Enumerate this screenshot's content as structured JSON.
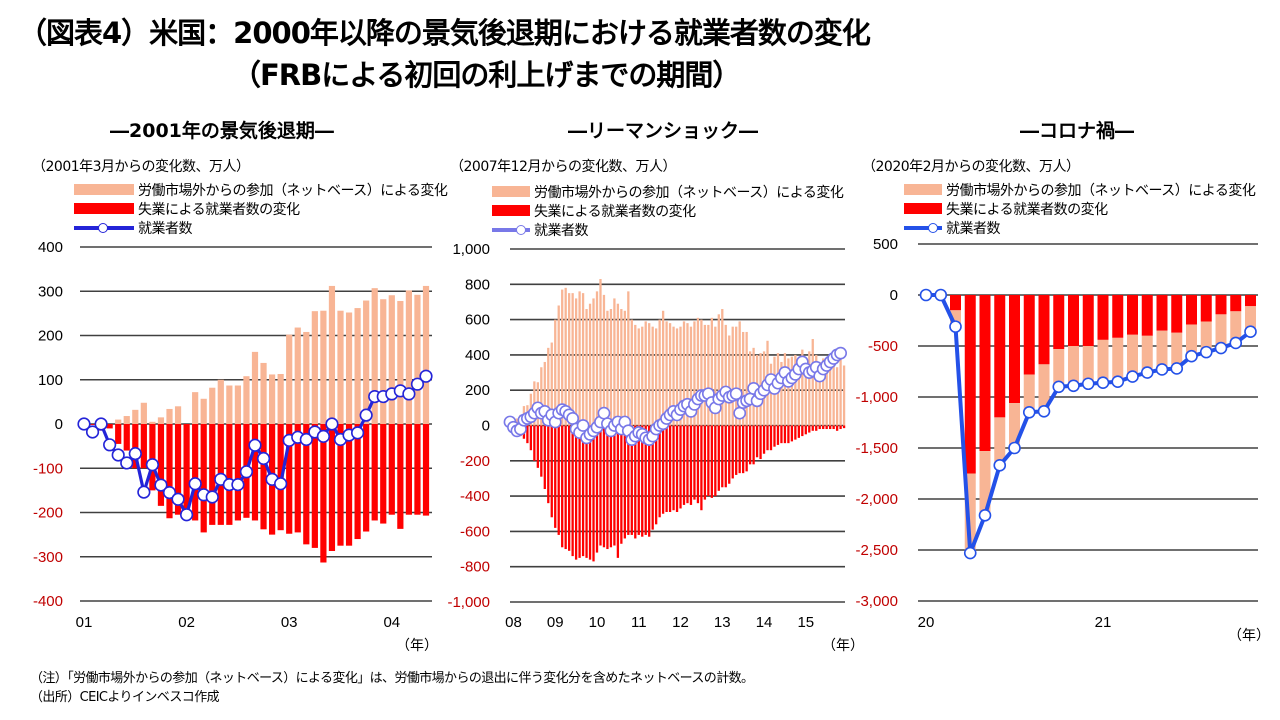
{
  "title_line1": "（図表4）米国：2000年以降の景気後退期における就業者数の変化",
  "title_line2": "（FRBによる初回の利上げまでの期間）",
  "colors": {
    "participation": "#f8b595",
    "unemployment": "#ff0000",
    "employed_line_1": "#2424d8",
    "employed_line_2": "#7878e8",
    "employed_line_3": "#2451e8",
    "neg_tick": "#c00000",
    "grid": "#404040"
  },
  "notes": {
    "note": "（注）「労働市場外からの参加（ネットベース）による変化」は、労働市場からの退出に伴う変化分を含めたネットベースの計数。",
    "source": "（出所）CEICよりインベスコ作成"
  },
  "chart_data": [
    {
      "type": "bar",
      "title": "―2001年の景気後退期―",
      "unit_label": "（2001年3月からの変化数、万人）",
      "xlabel": "（年）",
      "legend": [
        "労働市場外からの参加（ネットベース）による変化",
        "失業による就業者数の変化",
        "就業者数"
      ],
      "ylim": [
        -400,
        400
      ],
      "yticks": [
        400,
        300,
        200,
        100,
        0,
        -100,
        -200,
        -300,
        -400
      ],
      "ytick_labels": [
        "400",
        "300",
        "200",
        "100",
        "0",
        "-100",
        "-200",
        "-300",
        "-400"
      ],
      "xtick_labels": [
        "01",
        "02",
        "03",
        "04"
      ],
      "xtick_index": [
        0,
        12,
        24,
        36
      ],
      "grid": true,
      "series": [
        {
          "name": "労働市場外からの参加（ネットベース）による変化",
          "kind": "bar",
          "values": [
            0,
            0,
            -5,
            0,
            10,
            18,
            32,
            48,
            5,
            15,
            34,
            40,
            0,
            72,
            57,
            82,
            100,
            87,
            87,
            108,
            163,
            138,
            112,
            113,
            202,
            218,
            208,
            255,
            256,
            312,
            256,
            252,
            262,
            279,
            307,
            282,
            291,
            278,
            302,
            292,
            312
          ]
        },
        {
          "name": "失業による就業者数の変化",
          "kind": "bar",
          "values": [
            0,
            -2,
            -15,
            -10,
            -45,
            -60,
            -100,
            -100,
            -150,
            -185,
            -213,
            -205,
            -203,
            -218,
            -245,
            -228,
            -228,
            -228,
            -218,
            -212,
            -218,
            -238,
            -250,
            -240,
            -248,
            -245,
            -272,
            -280,
            -313,
            -287,
            -275,
            -275,
            -260,
            -243,
            -218,
            -225,
            -205,
            -237,
            -205,
            -205,
            -207
          ]
        },
        {
          "name": "就業者数",
          "kind": "line",
          "values": [
            0,
            -18,
            0,
            -47,
            -70,
            -88,
            -67,
            -154,
            -92,
            -138,
            -155,
            -170,
            -205,
            -135,
            -160,
            -165,
            -125,
            -137,
            -137,
            -108,
            -48,
            -78,
            -125,
            -135,
            -37,
            -30,
            -35,
            -18,
            -28,
            0,
            -35,
            -25,
            -20,
            20,
            62,
            62,
            68,
            75,
            68,
            90,
            108
          ]
        }
      ]
    },
    {
      "type": "bar",
      "title": "―リーマンショック―",
      "unit_label": "（2007年12月からの変化数、万人）",
      "xlabel": "（年）",
      "legend": [
        "労働市場外からの参加（ネットベース）による変化",
        "失業による就業者数の変化",
        "就業者数"
      ],
      "ylim": [
        -1000,
        1000
      ],
      "yticks": [
        1000,
        800,
        600,
        400,
        200,
        0,
        -200,
        -400,
        -600,
        -800,
        -1000
      ],
      "ytick_labels": [
        "1,000",
        "800",
        "600",
        "400",
        "200",
        "0",
        "-200",
        "-400",
        "-600",
        "-800",
        "-1,000"
      ],
      "xtick_labels": [
        "08",
        "09",
        "10",
        "11",
        "12",
        "13",
        "14",
        "15"
      ],
      "xtick_index": [
        1,
        13,
        25,
        37,
        49,
        61,
        73,
        85
      ],
      "grid": true,
      "series": [
        {
          "name": "労働市場外からの参加（ネットベース）による変化",
          "kind": "bar",
          "values": [
            0,
            20,
            40,
            60,
            110,
            115,
            180,
            250,
            245,
            330,
            360,
            440,
            470,
            600,
            680,
            770,
            780,
            750,
            750,
            720,
            760,
            750,
            660,
            690,
            720,
            760,
            830,
            740,
            650,
            660,
            720,
            690,
            660,
            650,
            760,
            600,
            570,
            550,
            560,
            590,
            580,
            560,
            550,
            600,
            650,
            590,
            580,
            560,
            550,
            560,
            590,
            580,
            560,
            590,
            610,
            600,
            570,
            570,
            610,
            560,
            630,
            660,
            570,
            510,
            560,
            560,
            590,
            530,
            530,
            420,
            440,
            400,
            410,
            420,
            480,
            350,
            390,
            410,
            360,
            410,
            380,
            390,
            400,
            370,
            430,
            360,
            420,
            490,
            400,
            360,
            380,
            370,
            360,
            340,
            330,
            380,
            340
          ]
        },
        {
          "name": "失業による就業者数の変化",
          "kind": "bar",
          "values": [
            0,
            -10,
            -20,
            -60,
            -75,
            -100,
            -140,
            -200,
            -240,
            -290,
            -360,
            -440,
            -520,
            -580,
            -620,
            -690,
            -700,
            -710,
            -740,
            -760,
            -750,
            -740,
            -750,
            -760,
            -770,
            -720,
            -680,
            -690,
            -700,
            -690,
            -680,
            -750,
            -670,
            -640,
            -620,
            -620,
            -640,
            -620,
            -630,
            -620,
            -630,
            -590,
            -560,
            -520,
            -500,
            -490,
            -490,
            -480,
            -490,
            -470,
            -450,
            -440,
            -450,
            -420,
            -440,
            -480,
            -420,
            -400,
            -410,
            -400,
            -370,
            -350,
            -350,
            -330,
            -300,
            -280,
            -270,
            -270,
            -260,
            -220,
            -220,
            -180,
            -190,
            -160,
            -140,
            -140,
            -120,
            -110,
            -100,
            -100,
            -100,
            -90,
            -80,
            -70,
            -60,
            -50,
            -40,
            -30,
            -30,
            -20,
            -20,
            -20,
            -20,
            -20,
            -30,
            -20,
            -15
          ]
        },
        {
          "name": "就業者数",
          "kind": "line",
          "values": [
            20,
            -10,
            -30,
            -20,
            30,
            40,
            50,
            70,
            100,
            70,
            80,
            30,
            60,
            20,
            70,
            90,
            80,
            60,
            40,
            -20,
            -40,
            0,
            -70,
            -50,
            -30,
            -10,
            20,
            70,
            10,
            -30,
            0,
            20,
            -20,
            20,
            -30,
            -80,
            -60,
            -40,
            -50,
            -70,
            -80,
            -60,
            -20,
            0,
            10,
            40,
            60,
            80,
            60,
            90,
            110,
            120,
            80,
            120,
            150,
            170,
            170,
            180,
            130,
            100,
            150,
            170,
            190,
            160,
            170,
            180,
            70,
            130,
            140,
            150,
            210,
            140,
            180,
            200,
            230,
            260,
            210,
            240,
            270,
            300,
            250,
            270,
            290,
            320,
            360,
            320,
            300,
            310,
            330,
            280,
            320,
            340,
            360,
            380,
            400,
            410
          ]
        }
      ]
    },
    {
      "type": "bar",
      "title": "―コロナ禍―",
      "unit_label": "（2020年2月からの変化数、万人）",
      "xlabel": "（年）",
      "legend": [
        "労働市場外からの参加（ネットベース）による変化",
        "失業による就業者数の変化",
        "就業者数"
      ],
      "ylim": [
        -3000,
        500
      ],
      "yticks": [
        500,
        0,
        -500,
        -1000,
        -1500,
        -2000,
        -2500,
        -3000
      ],
      "ytick_labels": [
        "500",
        "0",
        "-500",
        "-1,000",
        "-1,500",
        "-2,000",
        "-2,500",
        "-3,000"
      ],
      "xtick_labels": [
        "20",
        "21"
      ],
      "xtick_index": [
        0,
        12
      ],
      "grid": true,
      "series": [
        {
          "name": "失業による就業者数の変化",
          "kind": "bar",
          "values": [
            0,
            0,
            -150,
            -1750,
            -1530,
            -1200,
            -1060,
            -780,
            -680,
            -530,
            -500,
            -500,
            -440,
            -420,
            -390,
            -400,
            -350,
            -370,
            -290,
            -260,
            -190,
            -160,
            -110
          ]
        },
        {
          "name": "労働市場外からの参加（ネットベース）による変化",
          "kind": "bar",
          "values": [
            0,
            0,
            -160,
            -780,
            -630,
            -470,
            -440,
            -370,
            -460,
            -370,
            -390,
            -370,
            -420,
            -430,
            -410,
            -340,
            -370,
            -310,
            -340,
            -320,
            -330,
            -310,
            -260
          ]
        },
        {
          "name": "就業者数",
          "kind": "line",
          "values": [
            0,
            0,
            -310,
            -2530,
            -2160,
            -1670,
            -1500,
            -1150,
            -1140,
            -900,
            -890,
            -870,
            -860,
            -850,
            -800,
            -760,
            -730,
            -720,
            -600,
            -560,
            -520,
            -470,
            -360
          ]
        }
      ]
    }
  ]
}
